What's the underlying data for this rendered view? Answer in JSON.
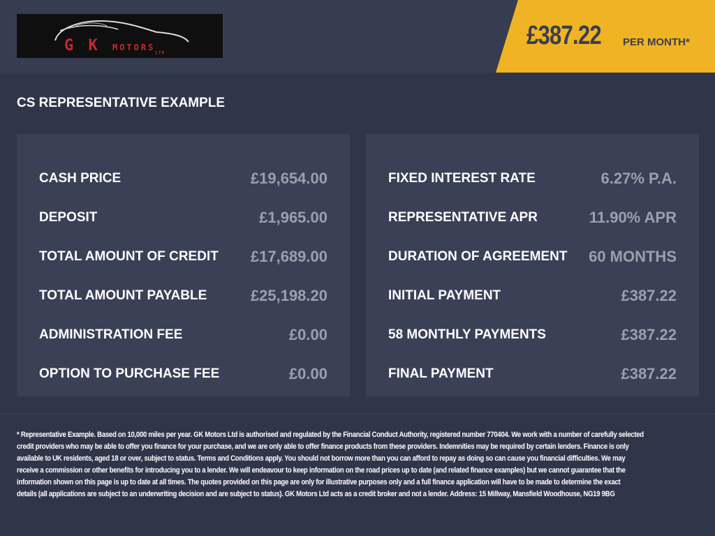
{
  "header": {
    "logo_text": "GK MOTORS LTD",
    "price": "£387.22",
    "per_month": "PER MONTH*"
  },
  "title": "CS REPRESENTATIVE EXAMPLE",
  "left_panel": [
    {
      "label": "CASH PRICE",
      "value": "£19,654.00"
    },
    {
      "label": "DEPOSIT",
      "value": "£1,965.00"
    },
    {
      "label": "TOTAL AMOUNT OF CREDIT",
      "value": "£17,689.00"
    },
    {
      "label": "TOTAL AMOUNT PAYABLE",
      "value": "£25,198.20"
    },
    {
      "label": "ADMINISTRATION FEE",
      "value": "£0.00"
    },
    {
      "label": "OPTION TO PURCHASE FEE",
      "value": "£0.00"
    }
  ],
  "right_panel": [
    {
      "label": "FIXED INTEREST RATE",
      "value": "6.27% P.A."
    },
    {
      "label": "REPRESENTATIVE APR",
      "value": "11.90% APR"
    },
    {
      "label": "DURATION OF AGREEMENT",
      "value": "60 MONTHS"
    },
    {
      "label": "INITIAL PAYMENT",
      "value": "£387.22"
    },
    {
      "label": "58 MONTHLY PAYMENTS",
      "value": "£387.22"
    },
    {
      "label": "FINAL PAYMENT",
      "value": "£387.22"
    }
  ],
  "footer_lines": [
    "* Representative Example. Based on 10,000 miles per year. GK Motors Ltd is authorised and regulated by the Financial Conduct Authority, registered number 770404. We work with a number of carefully selected",
    "credit providers who may be able to offer you finance for your purchase, and we are only able to offer finance products from these providers. Indemnities may be required by certain lenders. Finance is only",
    "available to UK residents, aged 18 or over, subject to status. Terms and Conditions apply. You should not borrow more than you can afford to repay as doing so can cause you financial difficulties. We may",
    "receive a commission or other benefits for introducing you to a lender. We will endeavour to keep information on the road prices up to date (and related finance examples) but we cannot guarantee that the",
    "information shown on this page is up to date at all times. The quotes provided on this page are only for illustrative purposes only and a full finance application will have to be made to determine the exact",
    "details (all applications are subject to an underwriting decision and are subject to status). GK Motors Ltd acts as a credit broker and not a lender. Address: 15 Millway, Mansfield Woodhouse, NG19 9BG"
  ]
}
